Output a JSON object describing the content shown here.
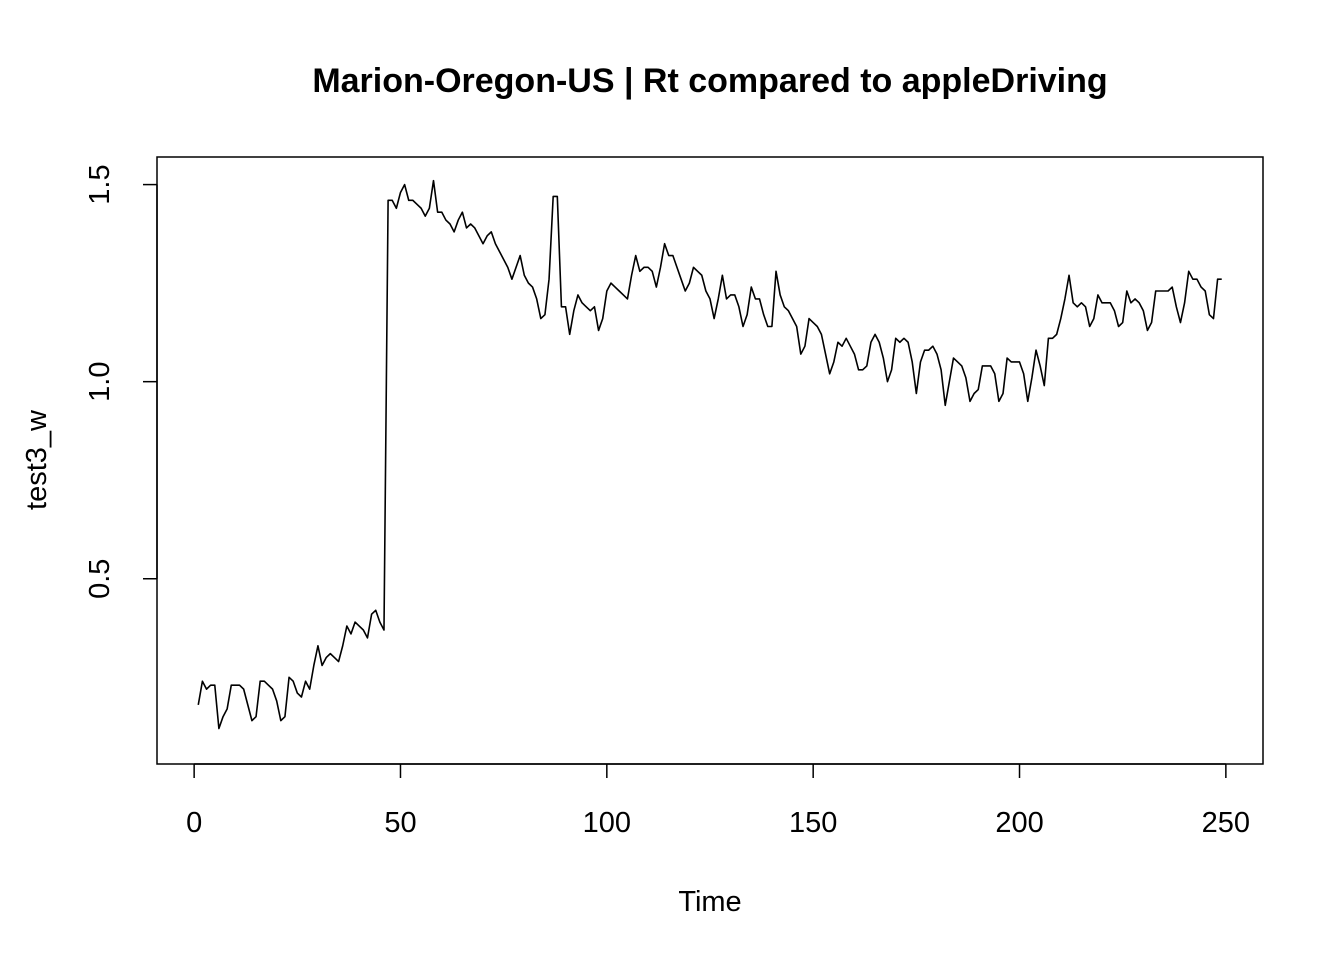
{
  "chart_data": {
    "type": "line",
    "title": "Marion-Oregon-US | Rt compared to appleDriving",
    "xlabel": "Time",
    "ylabel": "test3_w",
    "xlim": [
      -9,
      259
    ],
    "ylim": [
      0.03,
      1.57
    ],
    "x_ticks": [
      0,
      50,
      100,
      150,
      200,
      250
    ],
    "y_ticks": [
      0.5,
      1.0,
      1.5
    ],
    "x_tick_labels": [
      "0",
      "50",
      "100",
      "150",
      "200",
      "250"
    ],
    "y_tick_labels": [
      "0.5",
      "1.0",
      "1.5"
    ],
    "grid": false,
    "legend": "none",
    "line_color": "#000000",
    "series": [
      {
        "x_start": 1,
        "values": [
          0.18,
          0.24,
          0.22,
          0.23,
          0.23,
          0.12,
          0.15,
          0.17,
          0.23,
          0.23,
          0.23,
          0.22,
          0.18,
          0.14,
          0.15,
          0.24,
          0.24,
          0.23,
          0.22,
          0.19,
          0.14,
          0.15,
          0.25,
          0.24,
          0.21,
          0.2,
          0.24,
          0.22,
          0.28,
          0.33,
          0.28,
          0.3,
          0.31,
          0.3,
          0.29,
          0.33,
          0.38,
          0.36,
          0.39,
          0.38,
          0.37,
          0.35,
          0.41,
          0.42,
          0.39,
          0.37,
          1.46,
          1.46,
          1.44,
          1.48,
          1.5,
          1.46,
          1.46,
          1.45,
          1.44,
          1.42,
          1.44,
          1.51,
          1.43,
          1.43,
          1.41,
          1.4,
          1.38,
          1.41,
          1.43,
          1.39,
          1.4,
          1.39,
          1.37,
          1.35,
          1.37,
          1.38,
          1.35,
          1.33,
          1.31,
          1.29,
          1.26,
          1.29,
          1.32,
          1.27,
          1.25,
          1.24,
          1.21,
          1.16,
          1.17,
          1.26,
          1.47,
          1.47,
          1.19,
          1.19,
          1.12,
          1.18,
          1.22,
          1.2,
          1.19,
          1.18,
          1.19,
          1.13,
          1.16,
          1.23,
          1.25,
          1.24,
          1.23,
          1.22,
          1.21,
          1.27,
          1.32,
          1.28,
          1.29,
          1.29,
          1.28,
          1.24,
          1.29,
          1.35,
          1.32,
          1.32,
          1.29,
          1.26,
          1.23,
          1.25,
          1.29,
          1.28,
          1.27,
          1.23,
          1.21,
          1.16,
          1.21,
          1.27,
          1.21,
          1.22,
          1.22,
          1.19,
          1.14,
          1.17,
          1.24,
          1.21,
          1.21,
          1.17,
          1.14,
          1.14,
          1.28,
          1.22,
          1.19,
          1.18,
          1.16,
          1.14,
          1.07,
          1.09,
          1.16,
          1.15,
          1.14,
          1.12,
          1.07,
          1.02,
          1.05,
          1.1,
          1.09,
          1.11,
          1.09,
          1.07,
          1.03,
          1.03,
          1.04,
          1.1,
          1.12,
          1.1,
          1.06,
          1.0,
          1.03,
          1.11,
          1.1,
          1.11,
          1.1,
          1.05,
          0.97,
          1.05,
          1.08,
          1.08,
          1.09,
          1.07,
          1.03,
          0.94,
          1.0,
          1.06,
          1.05,
          1.04,
          1.01,
          0.95,
          0.97,
          0.98,
          1.04,
          1.04,
          1.04,
          1.02,
          0.95,
          0.97,
          1.06,
          1.05,
          1.05,
          1.05,
          1.02,
          0.95,
          1.01,
          1.08,
          1.04,
          0.99,
          1.11,
          1.11,
          1.12,
          1.16,
          1.21,
          1.27,
          1.2,
          1.19,
          1.2,
          1.19,
          1.14,
          1.16,
          1.22,
          1.2,
          1.2,
          1.2,
          1.18,
          1.14,
          1.15,
          1.23,
          1.2,
          1.21,
          1.2,
          1.18,
          1.13,
          1.15,
          1.23,
          1.23,
          1.23,
          1.23,
          1.24,
          1.19,
          1.15,
          1.2,
          1.28,
          1.26,
          1.26,
          1.24,
          1.23,
          1.17,
          1.16,
          1.26,
          1.26
        ]
      }
    ]
  }
}
